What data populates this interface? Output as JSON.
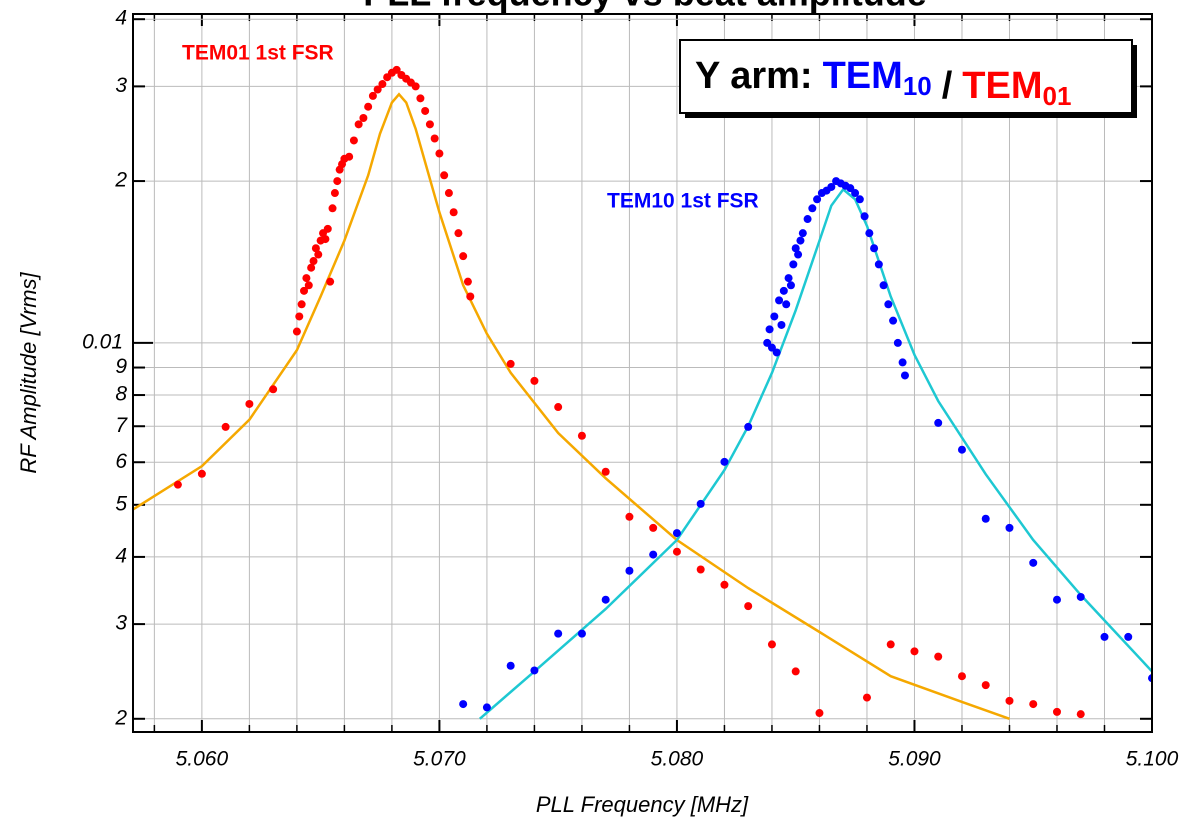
{
  "chart_data": {
    "type": "scatter",
    "title": "PLL frequency vs beat amplitude",
    "xlabel": "PLL Frequency  [MHz]",
    "ylabel": "RF Amplitude [Vrms]",
    "log_y": true,
    "grid": true,
    "xlim": [
      5.0571,
      5.1
    ],
    "ylim": [
      0.00189,
      0.0409
    ],
    "xticks": [
      {
        "value": 5.06,
        "label": "5.060"
      },
      {
        "value": 5.07,
        "label": "5.070"
      },
      {
        "value": 5.08,
        "label": "5.080"
      },
      {
        "value": 5.09,
        "label": "5.090"
      },
      {
        "value": 5.1,
        "label": "5.100"
      }
    ],
    "xminor_ticks": [
      5.058,
      5.062,
      5.064,
      5.066,
      5.068,
      5.072,
      5.074,
      5.076,
      5.078,
      5.082,
      5.084,
      5.086,
      5.088,
      5.092,
      5.094,
      5.096,
      5.098
    ],
    "yticks": [
      {
        "value": 0.002,
        "label": "2"
      },
      {
        "value": 0.003,
        "label": "3"
      },
      {
        "value": 0.004,
        "label": "4"
      },
      {
        "value": 0.005,
        "label": "5"
      },
      {
        "value": 0.006,
        "label": "6"
      },
      {
        "value": 0.007,
        "label": "7"
      },
      {
        "value": 0.008,
        "label": "8"
      },
      {
        "value": 0.009,
        "label": "9"
      },
      0.01,
      {
        "value": 0.02,
        "label": "2"
      },
      {
        "value": 0.03,
        "label": "3"
      },
      {
        "value": 0.04,
        "label": "4"
      }
    ],
    "legend": {
      "prefix": "Y arm:",
      "separator": "/",
      "items": [
        {
          "base": "TEM",
          "sub": "10",
          "color": "#0000ff"
        },
        {
          "base": "TEM",
          "sub": "01",
          "color": "#ff0000"
        }
      ]
    },
    "annotations": [
      {
        "text": "TEM01 1st FSR",
        "color": "#ff0000"
      },
      {
        "text": "TEM10 1st FSR",
        "color": "#0000ff"
      }
    ],
    "series": [
      {
        "color": "#ff0000",
        "x": [
          5.05899,
          5.06,
          5.061,
          5.062,
          5.063,
          5.064,
          5.0641,
          5.0642,
          5.0643,
          5.0644,
          5.0645,
          5.0646,
          5.0647,
          5.0648,
          5.0649,
          5.065,
          5.0651,
          5.0652,
          5.0653,
          5.0654,
          5.0655,
          5.0656,
          5.0657,
          5.0658,
          5.0659,
          5.066,
          5.0662,
          5.0664,
          5.0666,
          5.0668,
          5.067,
          5.0672,
          5.0674,
          5.0676,
          5.0678,
          5.068,
          5.0682,
          5.0684,
          5.0686,
          5.0688,
          5.069,
          5.0692,
          5.0694,
          5.0696,
          5.0698,
          5.07,
          5.0702,
          5.0704,
          5.0706,
          5.0708,
          5.071,
          5.0712,
          5.0713,
          5.073,
          5.074,
          5.075,
          5.076,
          5.077,
          5.078,
          5.079,
          5.08,
          5.081,
          5.082,
          5.083,
          5.084,
          5.085,
          5.086,
          5.088,
          5.089,
          5.09,
          5.091,
          5.092,
          5.093,
          5.094,
          5.095,
          5.096,
          5.097
        ],
        "values": [
          0.00545,
          0.00571,
          0.00698,
          0.0077,
          0.0082,
          0.0105,
          0.0112,
          0.0118,
          0.0125,
          0.0132,
          0.0128,
          0.0138,
          0.0142,
          0.015,
          0.0146,
          0.0155,
          0.016,
          0.0156,
          0.0163,
          0.013,
          0.0178,
          0.019,
          0.02,
          0.021,
          0.0215,
          0.022,
          0.0222,
          0.0238,
          0.0255,
          0.0262,
          0.0275,
          0.0288,
          0.0296,
          0.0303,
          0.0312,
          0.0318,
          0.0322,
          0.0315,
          0.031,
          0.0305,
          0.03,
          0.0285,
          0.027,
          0.0255,
          0.024,
          0.0225,
          0.0205,
          0.019,
          0.0175,
          0.016,
          0.0145,
          0.013,
          0.0122,
          0.00914,
          0.0085,
          0.0076,
          0.00672,
          0.00576,
          0.00475,
          0.00453,
          0.00409,
          0.00379,
          0.00355,
          0.00324,
          0.00275,
          0.00245,
          0.00205,
          0.00219,
          0.00275,
          0.00267,
          0.00261,
          0.0024,
          0.00231,
          0.00216,
          0.00213,
          0.00206,
          0.00204
        ]
      },
      {
        "color": "#0000ff",
        "x": [
          5.071,
          5.072,
          5.073,
          5.074,
          5.075,
          5.076,
          5.077,
          5.078,
          5.079,
          5.08,
          5.081,
          5.082,
          5.083,
          5.0838,
          5.0839,
          5.084,
          5.0841,
          5.0842,
          5.0843,
          5.0844,
          5.0845,
          5.0846,
          5.0847,
          5.0848,
          5.0849,
          5.085,
          5.0851,
          5.0852,
          5.0853,
          5.0855,
          5.0857,
          5.0859,
          5.0861,
          5.0863,
          5.0865,
          5.0867,
          5.0869,
          5.0871,
          5.0873,
          5.0875,
          5.0877,
          5.0879,
          5.0881,
          5.0883,
          5.0885,
          5.0887,
          5.0889,
          5.0891,
          5.0893,
          5.0895,
          5.0896,
          5.091,
          5.092,
          5.093,
          5.094,
          5.095,
          5.096,
          5.097,
          5.098,
          5.099,
          5.1
        ],
        "values": [
          0.00213,
          0.0021,
          0.00251,
          0.00246,
          0.00288,
          0.00288,
          0.00333,
          0.00377,
          0.00404,
          0.00443,
          0.00502,
          0.00601,
          0.00698,
          0.01,
          0.0106,
          0.0098,
          0.0112,
          0.0096,
          0.012,
          0.0108,
          0.0125,
          0.0118,
          0.0132,
          0.0128,
          0.014,
          0.015,
          0.0146,
          0.0155,
          0.016,
          0.017,
          0.0178,
          0.0185,
          0.019,
          0.0192,
          0.0195,
          0.02,
          0.0198,
          0.0196,
          0.0194,
          0.019,
          0.0185,
          0.0172,
          0.016,
          0.015,
          0.014,
          0.0128,
          0.0118,
          0.011,
          0.01,
          0.0092,
          0.0087,
          0.0071,
          0.00633,
          0.00471,
          0.00453,
          0.0039,
          0.00333,
          0.00337,
          0.00284,
          0.00284,
          0.00238
        ]
      }
    ],
    "fits": [
      {
        "color": "#f5a800",
        "x": [
          5.0571,
          5.06,
          5.062,
          5.064,
          5.065,
          5.066,
          5.067,
          5.0675,
          5.068,
          5.0683,
          5.0686,
          5.069,
          5.07,
          5.071,
          5.072,
          5.073,
          5.075,
          5.077,
          5.08,
          5.083,
          5.086,
          5.089,
          5.092,
          5.094
        ],
        "values": [
          0.0049,
          0.0059,
          0.0072,
          0.0097,
          0.0122,
          0.0155,
          0.0205,
          0.0245,
          0.028,
          0.029,
          0.028,
          0.025,
          0.0175,
          0.0128,
          0.0104,
          0.0088,
          0.0068,
          0.0056,
          0.0043,
          0.0035,
          0.0029,
          0.0024,
          0.00215,
          0.002
        ]
      },
      {
        "color": "#1ec8d2",
        "x": [
          5.0717,
          5.074,
          5.077,
          5.08,
          5.082,
          5.083,
          5.084,
          5.085,
          5.086,
          5.0865,
          5.087,
          5.0875,
          5.088,
          5.089,
          5.09,
          5.091,
          5.093,
          5.095,
          5.097,
          5.1
        ],
        "values": [
          0.002,
          0.00245,
          0.0032,
          0.0043,
          0.0058,
          0.007,
          0.0088,
          0.0115,
          0.0155,
          0.018,
          0.0193,
          0.0185,
          0.0165,
          0.0122,
          0.0095,
          0.0078,
          0.0057,
          0.0043,
          0.0034,
          0.00245
        ]
      }
    ]
  }
}
